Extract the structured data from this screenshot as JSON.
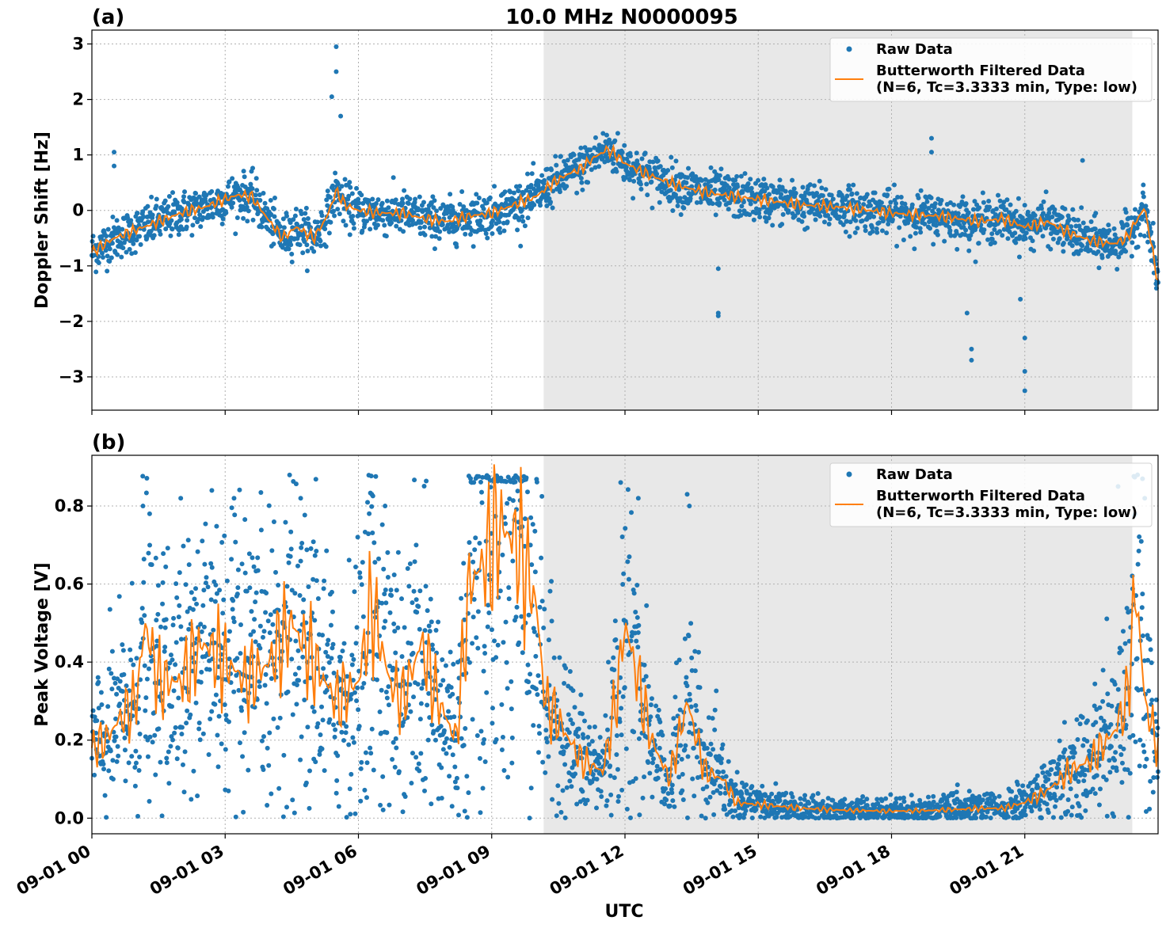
{
  "figure_title": "10.0 MHz N0000095",
  "colors": {
    "raw": "#1f77b4",
    "filtered": "#ff7f0e",
    "shade": "#e8e8e8"
  },
  "chart_data": [
    {
      "type": "scatter",
      "panel_label": "(a)",
      "title": "10.0 MHz N0000095",
      "xlabel": "",
      "ylabel": "Doppler Shift [Hz]",
      "xlim_hours": [
        0,
        24
      ],
      "ylim": [
        -3.6,
        3.25
      ],
      "yticks": [
        -3,
        -2,
        -1,
        0,
        1,
        2,
        3
      ],
      "ytick_labels": [
        "−3",
        "−2",
        "−1",
        "0",
        "1",
        "2",
        "3"
      ],
      "grid": true,
      "legend_position": "top-right",
      "shaded_region_hours": [
        10.17,
        23.42
      ],
      "series": [
        {
          "name": "Raw Data",
          "style": "points",
          "spread": 0.28
        },
        {
          "name": "Butterworth Filtered Data\n(N=6, Tc=3.3333 min, Type: low)",
          "style": "line"
        }
      ],
      "trend": {
        "x": [
          0,
          0.5,
          1,
          1.5,
          2,
          2.5,
          3,
          3.3,
          3.6,
          4,
          4.3,
          4.6,
          5,
          5.3,
          5.5,
          5.7,
          6,
          6.5,
          7,
          7.5,
          8,
          8.5,
          9,
          9.5,
          10,
          10.3,
          10.7,
          11,
          11.3,
          11.6,
          11.8,
          12,
          12.5,
          13,
          13.5,
          14,
          15,
          16,
          17,
          18,
          19,
          20,
          20.5,
          21,
          21.5,
          22,
          22.5,
          23,
          23.3,
          23.5,
          23.7,
          24
        ],
        "y": [
          -0.75,
          -0.5,
          -0.35,
          -0.2,
          -0.05,
          0.05,
          0.2,
          0.28,
          0.25,
          -0.2,
          -0.5,
          -0.3,
          -0.5,
          -0.1,
          0.35,
          0.1,
          0,
          -0.05,
          -0.05,
          -0.15,
          -0.2,
          -0.1,
          -0.05,
          0.1,
          0.25,
          0.45,
          0.65,
          0.75,
          0.95,
          1.1,
          1.0,
          0.85,
          0.65,
          0.5,
          0.38,
          0.3,
          0.2,
          0.1,
          0.05,
          -0.05,
          -0.1,
          -0.2,
          -0.15,
          -0.3,
          -0.2,
          -0.4,
          -0.55,
          -0.6,
          -0.5,
          -0.2,
          0.05,
          -1.3
        ]
      },
      "spikes": [
        {
          "x": 0.5,
          "y": 1.05
        },
        {
          "x": 0.5,
          "y": 0.8
        },
        {
          "x": 5.5,
          "y": 2.95
        },
        {
          "x": 5.5,
          "y": 2.5
        },
        {
          "x": 5.4,
          "y": 2.05
        },
        {
          "x": 5.6,
          "y": 1.7
        },
        {
          "x": 14.1,
          "y": -1.05
        },
        {
          "x": 14.1,
          "y": -1.85
        },
        {
          "x": 14.1,
          "y": -1.9
        },
        {
          "x": 19.7,
          "y": -1.85
        },
        {
          "x": 19.8,
          "y": -2.5
        },
        {
          "x": 19.8,
          "y": -2.7
        },
        {
          "x": 21.0,
          "y": -2.3
        },
        {
          "x": 21.0,
          "y": -2.9
        },
        {
          "x": 21.0,
          "y": -3.25
        },
        {
          "x": 20.9,
          "y": -1.6
        },
        {
          "x": 22.3,
          "y": 0.9
        },
        {
          "x": 18.9,
          "y": 1.3
        },
        {
          "x": 18.9,
          "y": 1.05
        }
      ]
    },
    {
      "type": "scatter",
      "panel_label": "(b)",
      "title": "",
      "xlabel": "UTC",
      "ylabel": "Peak Voltage [V]",
      "xlim_hours": [
        0,
        24
      ],
      "ylim": [
        -0.04,
        0.93
      ],
      "yticks": [
        0.0,
        0.2,
        0.4,
        0.6,
        0.8
      ],
      "ytick_labels": [
        "0.0",
        "0.2",
        "0.4",
        "0.6",
        "0.8"
      ],
      "grid": true,
      "legend_position": "top-right",
      "shaded_region_hours": [
        10.17,
        23.42
      ],
      "series": [
        {
          "name": "Raw Data",
          "style": "points",
          "spread": 0.5
        },
        {
          "name": "Butterworth Filtered Data\n(N=6, Tc=3.3333 min, Type: low)",
          "style": "line"
        }
      ],
      "trend": {
        "x": [
          0,
          0.3,
          0.6,
          1,
          1.2,
          1.5,
          2,
          2.5,
          3,
          3.5,
          4,
          4.5,
          5,
          5.5,
          6,
          6.3,
          6.7,
          7,
          7.4,
          7.8,
          8.2,
          8.5,
          8.8,
          9.2,
          9.6,
          10,
          10.2,
          10.5,
          11,
          11.5,
          11.8,
          12,
          12.3,
          12.6,
          13,
          13.4,
          13.8,
          14.2,
          14.5,
          15,
          16,
          17,
          18,
          19,
          20,
          20.5,
          21,
          21.5,
          22,
          22.5,
          23,
          23.3,
          23.5,
          23.7,
          24
        ],
        "y": [
          0.18,
          0.2,
          0.25,
          0.3,
          0.5,
          0.35,
          0.35,
          0.45,
          0.4,
          0.35,
          0.4,
          0.5,
          0.4,
          0.3,
          0.35,
          0.55,
          0.35,
          0.3,
          0.45,
          0.3,
          0.2,
          0.6,
          0.65,
          0.75,
          0.7,
          0.55,
          0.3,
          0.25,
          0.15,
          0.12,
          0.3,
          0.5,
          0.35,
          0.2,
          0.1,
          0.3,
          0.12,
          0.1,
          0.04,
          0.035,
          0.025,
          0.02,
          0.018,
          0.02,
          0.025,
          0.025,
          0.04,
          0.07,
          0.12,
          0.15,
          0.22,
          0.3,
          0.6,
          0.3,
          0.18
        ]
      },
      "spikes": [
        {
          "x": 1.15,
          "y": 0.8
        },
        {
          "x": 1.3,
          "y": 0.78
        },
        {
          "x": 2.0,
          "y": 0.82
        },
        {
          "x": 2.7,
          "y": 0.84
        },
        {
          "x": 3.2,
          "y": 0.82
        },
        {
          "x": 4.7,
          "y": 0.82
        },
        {
          "x": 6.3,
          "y": 0.83
        },
        {
          "x": 6.6,
          "y": 0.8
        },
        {
          "x": 7.3,
          "y": 0.7
        },
        {
          "x": 12.3,
          "y": 0.82
        },
        {
          "x": 13.4,
          "y": 0.83
        },
        {
          "x": 13.45,
          "y": 0.8
        },
        {
          "x": 23.1,
          "y": 0.85
        },
        {
          "x": 23.65,
          "y": 0.87
        },
        {
          "x": 23.7,
          "y": 0.82
        }
      ]
    }
  ],
  "xticks_hours": [
    0,
    3,
    6,
    9,
    12,
    15,
    18,
    21
  ],
  "xtick_labels": [
    "09-01 00",
    "09-01 03",
    "09-01 06",
    "09-01 09",
    "09-01 12",
    "09-01 15",
    "09-01 18",
    "09-01 21"
  ]
}
